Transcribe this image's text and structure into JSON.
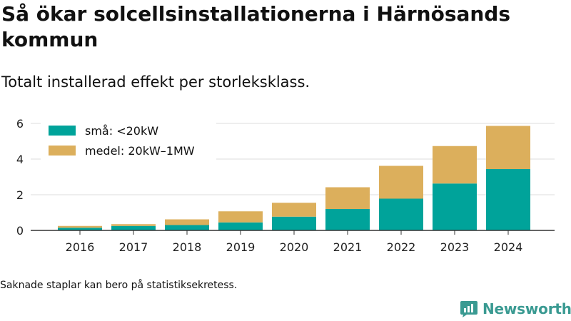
{
  "header": {
    "title": "Så ökar solcellsinstallationerna i Härnösands kommun",
    "subtitle": "Totalt installerad effekt per storleksklass."
  },
  "footer": {
    "note": "Saknade staplar kan bero på statistiksekretess.",
    "brand": "Newsworthy"
  },
  "colors": {
    "small": "#00a39a",
    "medium": "#dcaf5c",
    "grid": "#dddddd",
    "axis": "#333333",
    "brand": "#3a9a92"
  },
  "chart_data": {
    "type": "bar",
    "stacked": true,
    "title": "",
    "xlabel": "",
    "ylabel": "",
    "categories": [
      "2016",
      "2017",
      "2018",
      "2019",
      "2020",
      "2021",
      "2022",
      "2023",
      "2024"
    ],
    "series": [
      {
        "name": "små: <20kW",
        "color": "#00a39a",
        "values": [
          0.15,
          0.25,
          0.3,
          0.45,
          0.77,
          1.2,
          1.78,
          2.63,
          3.44
        ]
      },
      {
        "name": "medel: 20kW–1MW",
        "color": "#dcaf5c",
        "values": [
          0.1,
          0.1,
          0.32,
          0.62,
          0.78,
          1.22,
          1.84,
          2.1,
          2.42
        ]
      }
    ],
    "ylim": [
      0,
      6
    ],
    "yticks": [
      0,
      2,
      4,
      6
    ],
    "grid": true,
    "legend_position": "top-left"
  }
}
